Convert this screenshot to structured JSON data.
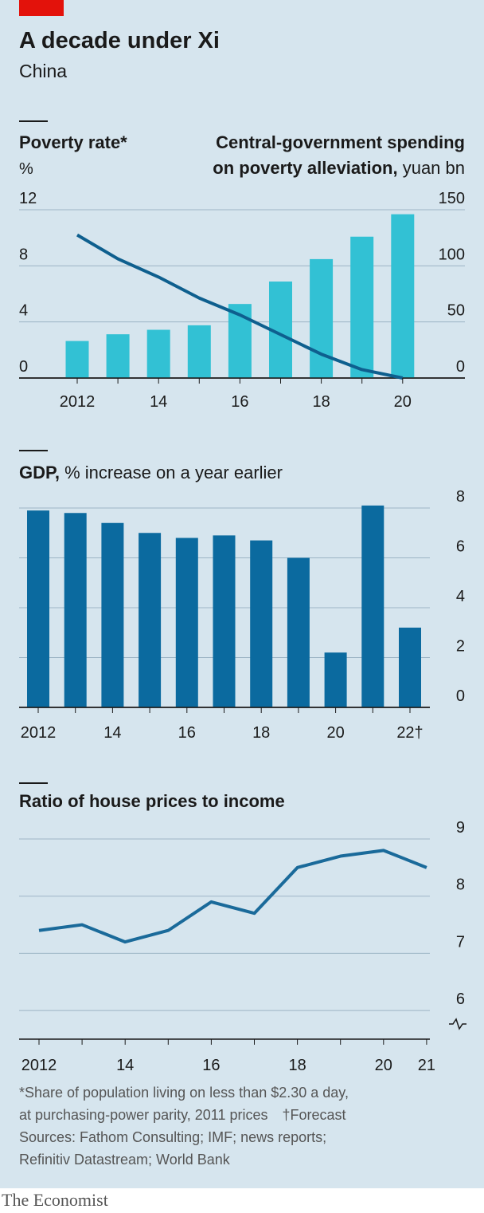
{
  "title": "A decade under Xi",
  "subtitle": "China",
  "chart_data": [
    {
      "type": "combo",
      "y_title": "Poverty rate*",
      "y_unit": "%",
      "y2_title": [
        "Central-government spending",
        "on poverty alleviation,"
      ],
      "y2_unit": "yuan bn",
      "categories": [
        "2012",
        null,
        "14",
        null,
        "16",
        null,
        "18",
        null,
        "20"
      ],
      "series": [
        {
          "kind": "line",
          "axis": "y",
          "color": "#0e5f8e",
          "values": [
            10.2,
            8.5,
            7.2,
            5.7,
            4.5,
            3.1,
            1.7,
            0.6,
            0
          ]
        },
        {
          "kind": "bar",
          "axis": "y2",
          "color": "#32c1d4",
          "values": [
            33,
            39,
            43,
            47,
            66,
            86,
            106,
            126,
            146
          ]
        }
      ],
      "ylim": [
        0,
        12
      ],
      "yticks": [
        0,
        4,
        8,
        12
      ],
      "y2lim": [
        0,
        150
      ],
      "y2ticks": [
        0,
        50,
        100,
        150
      ],
      "grid": true
    },
    {
      "type": "bar",
      "title": "GDP,",
      "subtitle": "% increase on a year earlier",
      "categories": [
        "2012",
        null,
        "14",
        null,
        "16",
        null,
        "18",
        null,
        "20",
        null,
        "22†"
      ],
      "values": [
        7.9,
        7.8,
        7.4,
        7.0,
        6.8,
        6.9,
        6.7,
        6.0,
        2.2,
        8.1,
        3.2
      ],
      "color": "#0b6a9f",
      "ylim": [
        0,
        8
      ],
      "yticks": [
        0,
        2,
        4,
        6,
        8
      ],
      "grid": true
    },
    {
      "type": "line",
      "title": "Ratio of house prices to income",
      "categories": [
        "2012",
        null,
        "14",
        null,
        "16",
        null,
        "18",
        null,
        "20",
        "21"
      ],
      "values": [
        7.4,
        7.5,
        7.2,
        7.4,
        7.9,
        7.7,
        8.5,
        8.7,
        8.8,
        8.5
      ],
      "color": "#1a6a9a",
      "ylim": [
        5.5,
        9
      ],
      "yticks": [
        6,
        7,
        8,
        9
      ],
      "grid": true
    }
  ],
  "footnote": [
    "*Share of population living on less than $2.30 a day,",
    "at purchasing-power parity, 2011 prices"
  ],
  "forecast_note": "†Forecast",
  "sources": [
    "Sources: Fathom Consulting; IMF; news reports;",
    "Refinitiv Datastream; World Bank"
  ],
  "brand": "The Economist"
}
